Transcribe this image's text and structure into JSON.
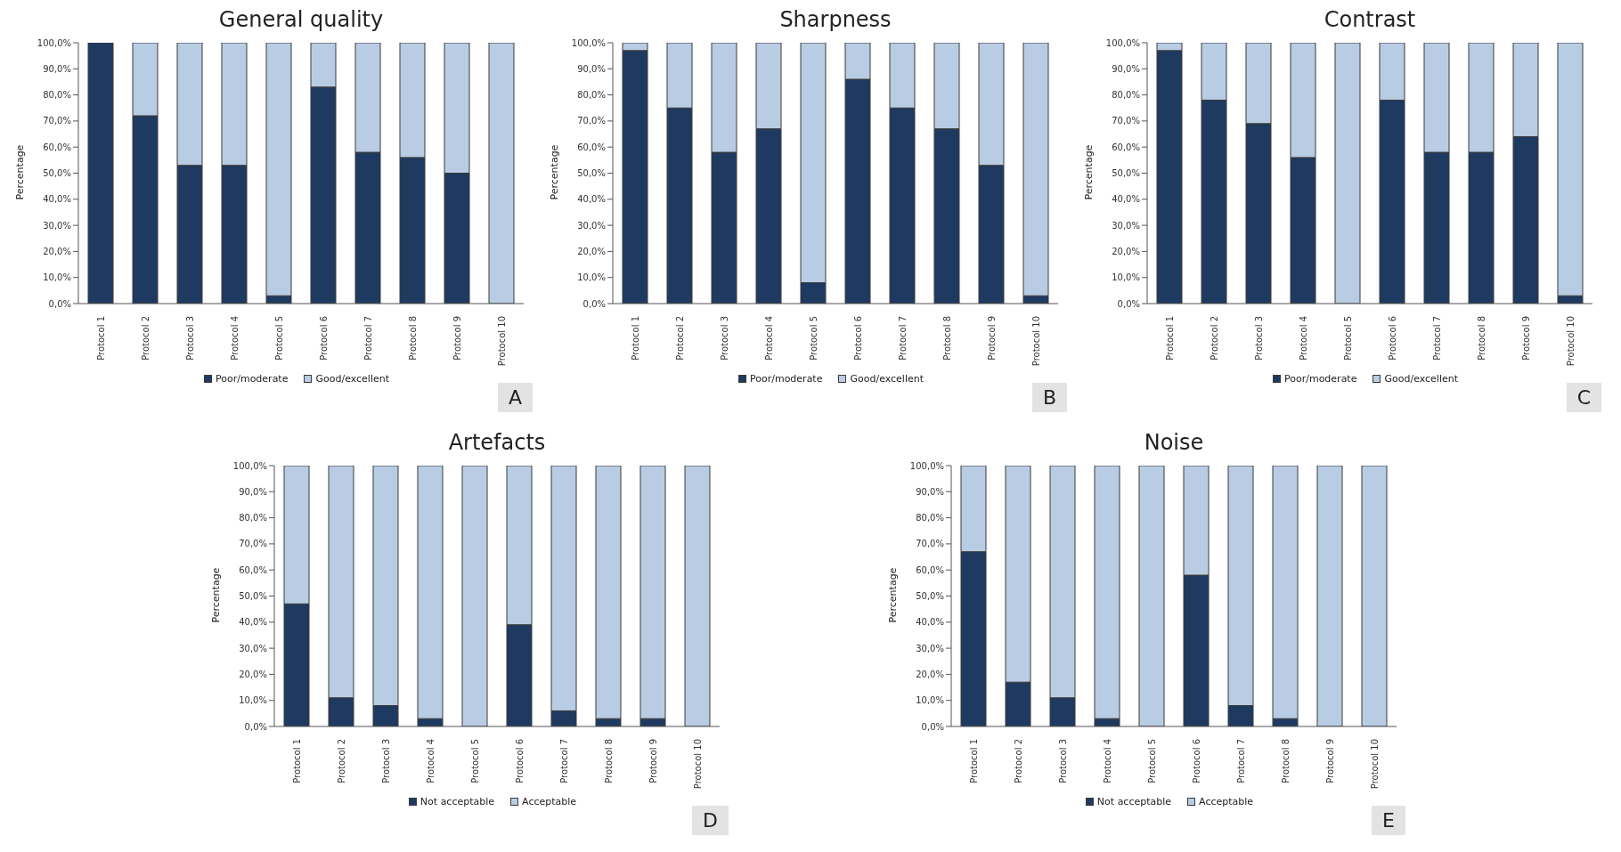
{
  "chart_data": [
    {
      "type": "bar",
      "title": "General quality",
      "ylabel": "Percentage",
      "stacked": true,
      "legend": "bottom",
      "annotations": [
        "A"
      ],
      "categories": [
        "Protocol 1",
        "Protocol 2",
        "Protocol 3",
        "Protocol 4",
        "Protocol 5",
        "Protocol 6",
        "Protocol 7",
        "Protocol 8",
        "Protocol 9",
        "Protocol 10"
      ],
      "ylim": [
        0,
        100
      ],
      "yticks": [
        {
          "value": 0,
          "label": "0,0%"
        },
        {
          "value": 10,
          "label": "10,0%"
        },
        {
          "value": 20,
          "label": "20,0%"
        },
        {
          "value": 30,
          "label": "30,0%"
        },
        {
          "value": 40,
          "label": "40,0%"
        },
        {
          "value": 50,
          "label": "50,0%"
        },
        {
          "value": 60,
          "label": "60,0%"
        },
        {
          "value": 70,
          "label": "70,0%"
        },
        {
          "value": 80,
          "label": "80,0%"
        },
        {
          "value": 90,
          "label": "90,0%"
        },
        {
          "value": 100,
          "label": "100,0%"
        }
      ],
      "series": [
        {
          "name": "Poor/moderate",
          "color": "#1f3a60",
          "values": [
            100,
            72,
            53,
            53,
            3,
            83,
            58,
            56,
            50,
            0
          ]
        },
        {
          "name": "Good/excellent",
          "color": "#b8cce4",
          "values": [
            0,
            28,
            47,
            47,
            97,
            17,
            42,
            44,
            50,
            100
          ]
        }
      ]
    },
    {
      "type": "bar",
      "title": "Sharpness",
      "ylabel": "Percentage",
      "stacked": true,
      "legend": "bottom",
      "annotations": [
        "B"
      ],
      "categories": [
        "Protocol 1",
        "Protocol 2",
        "Protocol 3",
        "Protocol 4",
        "Protocol 5",
        "Protocol 6",
        "Protocol 7",
        "Protocol 8",
        "Protocol 9",
        "Protocol 10"
      ],
      "ylim": [
        0,
        100
      ],
      "yticks": [
        {
          "value": 0,
          "label": "0,0%"
        },
        {
          "value": 10,
          "label": "10,0%"
        },
        {
          "value": 20,
          "label": "20,0%"
        },
        {
          "value": 30,
          "label": "30,0%"
        },
        {
          "value": 40,
          "label": "40,0%"
        },
        {
          "value": 50,
          "label": "50,0%"
        },
        {
          "value": 60,
          "label": "60,0%"
        },
        {
          "value": 70,
          "label": "70,0%"
        },
        {
          "value": 80,
          "label": "80,0%"
        },
        {
          "value": 90,
          "label": "90,0%"
        },
        {
          "value": 100,
          "label": "100,0%"
        }
      ],
      "series": [
        {
          "name": "Poor/moderate",
          "color": "#1f3a60",
          "values": [
            97,
            75,
            58,
            67,
            8,
            86,
            75,
            67,
            53,
            3
          ]
        },
        {
          "name": "Good/excellent",
          "color": "#b8cce4",
          "values": [
            3,
            25,
            42,
            33,
            92,
            14,
            25,
            33,
            47,
            97
          ]
        }
      ]
    },
    {
      "type": "bar",
      "title": "Contrast",
      "ylabel": "Percentage",
      "stacked": true,
      "legend": "bottom",
      "annotations": [
        "C"
      ],
      "categories": [
        "Protocol 1",
        "Protocol 2",
        "Protocol 3",
        "Protocol 4",
        "Protocol 5",
        "Protocol 6",
        "Protocol 7",
        "Protocol 8",
        "Protocol 9",
        "Protocol 10"
      ],
      "ylim": [
        0,
        100
      ],
      "yticks": [
        {
          "value": 0,
          "label": "0,0%"
        },
        {
          "value": 10,
          "label": "10,0%"
        },
        {
          "value": 20,
          "label": "20,0%"
        },
        {
          "value": 30,
          "label": "30,0%"
        },
        {
          "value": 40,
          "label": "40,0%"
        },
        {
          "value": 50,
          "label": "50,0%"
        },
        {
          "value": 60,
          "label": "60,0%"
        },
        {
          "value": 70,
          "label": "70,0%"
        },
        {
          "value": 80,
          "label": "80,0%"
        },
        {
          "value": 90,
          "label": "90,0%"
        },
        {
          "value": 100,
          "label": "100,0%"
        }
      ],
      "series": [
        {
          "name": "Poor/moderate",
          "color": "#1f3a60",
          "values": [
            97,
            78,
            69,
            56,
            0,
            78,
            58,
            58,
            64,
            3
          ]
        },
        {
          "name": "Good/excellent",
          "color": "#b8cce4",
          "values": [
            3,
            22,
            31,
            44,
            100,
            22,
            42,
            42,
            36,
            97
          ]
        }
      ]
    },
    {
      "type": "bar",
      "title": "Artefacts",
      "ylabel": "Percentage",
      "stacked": true,
      "legend": "bottom",
      "annotations": [
        "D"
      ],
      "categories": [
        "Protocol 1",
        "Protocol 2",
        "Protocol 3",
        "Protocol 4",
        "Protocol 5",
        "Protocol 6",
        "Protocol 7",
        "Protocol 8",
        "Protocol 9",
        "Protocol 10"
      ],
      "ylim": [
        0,
        100
      ],
      "yticks": [
        {
          "value": 0,
          "label": "0,0%"
        },
        {
          "value": 10,
          "label": "10,0%"
        },
        {
          "value": 20,
          "label": "20,0%"
        },
        {
          "value": 30,
          "label": "30,0%"
        },
        {
          "value": 40,
          "label": "40,0%"
        },
        {
          "value": 50,
          "label": "50,0%"
        },
        {
          "value": 60,
          "label": "60,0%"
        },
        {
          "value": 70,
          "label": "70,0%"
        },
        {
          "value": 80,
          "label": "80,0%"
        },
        {
          "value": 90,
          "label": "90,0%"
        },
        {
          "value": 100,
          "label": "100,0%"
        }
      ],
      "series": [
        {
          "name": "Not acceptable",
          "color": "#1f3a60",
          "values": [
            47,
            11,
            8,
            3,
            0,
            39,
            6,
            3,
            3,
            0
          ]
        },
        {
          "name": "Acceptable",
          "color": "#b8cce4",
          "values": [
            53,
            89,
            92,
            97,
            100,
            61,
            94,
            97,
            97,
            100
          ]
        }
      ]
    },
    {
      "type": "bar",
      "title": "Noise",
      "ylabel": "Percentage",
      "stacked": true,
      "legend": "bottom",
      "annotations": [
        "E"
      ],
      "categories": [
        "Protocol 1",
        "Protocol 2",
        "Protocol 3",
        "Protocol 4",
        "Protocol 5",
        "Protocol 6",
        "Protocol 7",
        "Protocol 8",
        "Protocol 9",
        "Protocol 10"
      ],
      "ylim": [
        0,
        100
      ],
      "yticks": [
        {
          "value": 0,
          "label": "0,0%"
        },
        {
          "value": 10,
          "label": "10,0%"
        },
        {
          "value": 20,
          "label": "20,0%"
        },
        {
          "value": 30,
          "label": "30,0%"
        },
        {
          "value": 40,
          "label": "40,0%"
        },
        {
          "value": 50,
          "label": "50,0%"
        },
        {
          "value": 60,
          "label": "60,0%"
        },
        {
          "value": 70,
          "label": "70,0%"
        },
        {
          "value": 80,
          "label": "80,0%"
        },
        {
          "value": 90,
          "label": "90,0%"
        },
        {
          "value": 100,
          "label": "100,0%"
        }
      ],
      "series": [
        {
          "name": "Not acceptable",
          "color": "#1f3a60",
          "values": [
            67,
            17,
            11,
            3,
            0,
            58,
            8,
            3,
            0,
            0
          ]
        },
        {
          "name": "Acceptable",
          "color": "#b8cce4",
          "values": [
            33,
            83,
            89,
            97,
            100,
            42,
            92,
            97,
            100,
            100
          ]
        }
      ]
    }
  ]
}
